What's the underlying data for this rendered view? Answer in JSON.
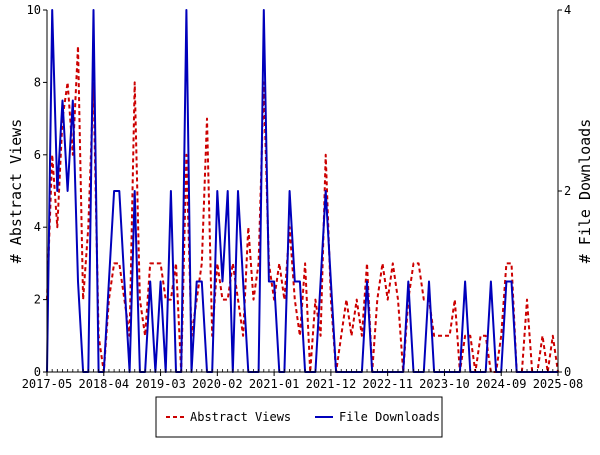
{
  "chart_data": {
    "type": "line",
    "title": "",
    "xlabel": "",
    "ylabel": "# Abstract Views",
    "y2label": "# File Downloads",
    "xlim": [
      "2017-05",
      "2025-08"
    ],
    "ylim": [
      0,
      10
    ],
    "y2lim": [
      0,
      4
    ],
    "x_tick_labels": [
      "2017-05",
      "2018-04",
      "2019-03",
      "2020-02",
      "2021-01",
      "2021-12",
      "2022-11",
      "2023-10",
      "2024-09",
      "2025-08"
    ],
    "y_ticks": [
      0,
      2,
      4,
      6,
      8,
      10
    ],
    "y2_ticks": [
      0,
      2,
      4
    ],
    "grid": false,
    "legend": "bottom-center",
    "colors": {
      "views": "#cc0000",
      "downloads": "#0000bb"
    },
    "x": [
      "2017-05",
      "2017-06",
      "2017-07",
      "2017-08",
      "2017-09",
      "2017-10",
      "2017-11",
      "2017-12",
      "2018-01",
      "2018-02",
      "2018-03",
      "2018-04",
      "2018-05",
      "2018-06",
      "2018-07",
      "2018-08",
      "2018-09",
      "2018-10",
      "2018-11",
      "2018-12",
      "2019-01",
      "2019-02",
      "2019-03",
      "2019-04",
      "2019-05",
      "2019-06",
      "2019-07",
      "2019-08",
      "2019-09",
      "2019-10",
      "2019-11",
      "2019-12",
      "2020-01",
      "2020-02",
      "2020-03",
      "2020-04",
      "2020-05",
      "2020-06",
      "2020-07",
      "2020-08",
      "2020-09",
      "2020-10",
      "2020-11",
      "2020-12",
      "2021-01",
      "2021-02",
      "2021-03",
      "2021-04",
      "2021-05",
      "2021-06",
      "2021-07",
      "2021-08",
      "2021-09",
      "2021-10",
      "2021-11",
      "2021-12",
      "2022-01",
      "2022-02",
      "2022-03",
      "2022-04",
      "2022-05",
      "2022-06",
      "2022-07",
      "2022-08",
      "2022-09",
      "2022-10",
      "2022-11",
      "2022-12",
      "2023-01",
      "2023-02",
      "2023-03",
      "2023-04",
      "2023-05",
      "2023-06",
      "2023-07",
      "2023-08",
      "2023-09",
      "2023-10",
      "2023-11",
      "2023-12",
      "2024-01",
      "2024-02",
      "2024-03",
      "2024-04",
      "2024-05",
      "2024-06",
      "2024-07",
      "2024-08",
      "2024-09",
      "2024-10",
      "2024-11",
      "2024-12",
      "2025-01",
      "2025-02",
      "2025-03",
      "2025-04",
      "2025-05",
      "2025-06",
      "2025-07",
      "2025-08"
    ],
    "series": [
      {
        "name": "Abstract Views",
        "axis": "left",
        "style": "dashed",
        "values": [
          2,
          6,
          4,
          7,
          8,
          6,
          9,
          2,
          4,
          8,
          1,
          0,
          2,
          3,
          3,
          2,
          1,
          8,
          2,
          1,
          3,
          3,
          3,
          2,
          2,
          3,
          0,
          6,
          1,
          2,
          3,
          7,
          1,
          3,
          2,
          2,
          3,
          2,
          1,
          4,
          2,
          3,
          8,
          3,
          2,
          3,
          2,
          4,
          2,
          1,
          3,
          0,
          2,
          1,
          6,
          2,
          0,
          1,
          2,
          1,
          2,
          1,
          3,
          0,
          2,
          3,
          2,
          3,
          2,
          0,
          2,
          3,
          3,
          2,
          2,
          1,
          1,
          1,
          1,
          2,
          0,
          1,
          1,
          0,
          1,
          1,
          0,
          0,
          1,
          3,
          3,
          0,
          0,
          2,
          0,
          0,
          1,
          0,
          1,
          0
        ]
      },
      {
        "name": "File Downloads",
        "axis": "right",
        "style": "solid",
        "values": [
          0,
          4,
          2,
          3,
          2,
          3,
          1,
          0,
          0,
          4,
          0,
          0,
          1,
          2,
          2,
          1,
          0,
          2,
          0,
          0,
          1,
          0,
          1,
          0,
          2,
          0,
          0,
          4,
          0,
          1,
          1,
          0,
          0,
          2,
          1,
          2,
          0,
          2,
          1,
          0,
          0,
          0,
          4,
          1,
          1,
          0,
          0,
          2,
          1,
          1,
          0,
          0,
          0,
          1,
          2,
          1,
          0,
          0,
          0,
          0,
          0,
          0,
          1,
          0,
          0,
          0,
          0,
          0,
          0,
          0,
          1,
          0,
          0,
          0,
          1,
          0,
          0,
          0,
          0,
          0,
          0,
          1,
          0,
          0,
          0,
          0,
          1,
          0,
          0,
          1,
          1,
          0,
          0,
          0,
          0,
          0,
          0,
          0,
          0,
          0
        ]
      }
    ]
  }
}
